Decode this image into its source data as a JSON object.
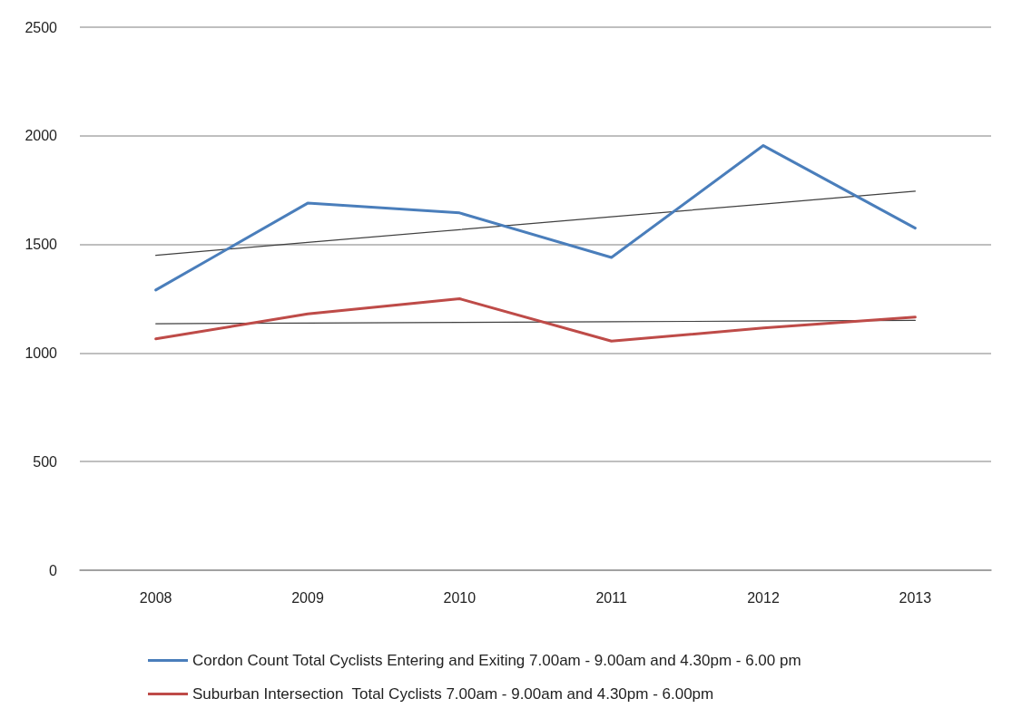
{
  "chart_data": {
    "type": "line",
    "categories": [
      "2008",
      "2009",
      "2010",
      "2011",
      "2012",
      "2013"
    ],
    "series": [
      {
        "name": "Cordon Count Total Cyclists Entering and Exiting 7.00am - 9.00am and 4.30pm - 6.00 pm",
        "color": "#4a7ebb",
        "values": [
          1290,
          1690,
          1645,
          1440,
          1955,
          1575
        ]
      },
      {
        "name": "Suburban Intersection  Total Cyclists 7.00am - 9.00am and 4.30pm - 6.00pm",
        "color": "#be4b48",
        "values": [
          1065,
          1180,
          1250,
          1055,
          1115,
          1165
        ]
      },
      {
        "color": "#404040",
        "values": [
          1450,
          1509,
          1568,
          1627,
          1686,
          1745
        ]
      },
      {
        "color": "#404040",
        "values": [
          1135,
          1138,
          1141,
          1144,
          1147,
          1150
        ]
      }
    ],
    "ylim": [
      0,
      2500
    ],
    "yticks": [
      0,
      500,
      1000,
      1500,
      2000,
      2500
    ],
    "grid": "y",
    "legend": "bottom",
    "marker": "none",
    "line_style": "solid"
  }
}
